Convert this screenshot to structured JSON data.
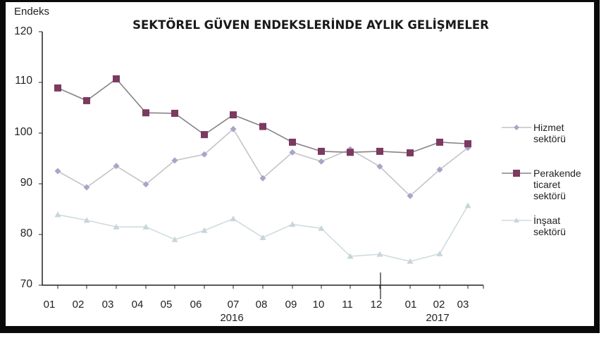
{
  "chart_data": {
    "type": "line",
    "title": "SEKTÖREL GÜVEN ENDEKSLERİNDE AYLIK GELİŞMELER",
    "ylabel": "Endeks",
    "xlabel": "",
    "ylim": [
      70,
      120
    ],
    "yticks": [
      "120",
      "110",
      "100",
      "90",
      "80",
      "70"
    ],
    "categories": [
      "01",
      "02",
      "03",
      "04",
      "05",
      "06",
      "07",
      "08",
      "09",
      "10",
      "11",
      "12",
      "01",
      "02",
      "03"
    ],
    "x_groups": [
      {
        "label": "2016",
        "months": [
          "01",
          "02",
          "03",
          "04",
          "05",
          "06",
          "07",
          "08",
          "09",
          "10",
          "11",
          "12"
        ]
      },
      {
        "label": "2017",
        "months": [
          "01",
          "02",
          "03"
        ]
      }
    ],
    "grid": false,
    "legend_position": "right",
    "series": [
      {
        "name": "Hizmet sektörü",
        "marker": "diamond",
        "color": "#a9a4c9",
        "line_color": "#c4c4c8",
        "values": [
          92.5,
          89.3,
          93.5,
          89.9,
          94.6,
          95.8,
          100.8,
          91.1,
          96.2,
          94.4,
          96.8,
          93.4,
          87.6,
          92.8,
          97.1
        ]
      },
      {
        "name": "Perakende ticaret sektörü",
        "marker": "square",
        "color": "#7b3a5f",
        "line_color": "#8a8288",
        "values": [
          108.9,
          106.4,
          110.7,
          104.0,
          103.9,
          99.7,
          103.6,
          101.3,
          98.2,
          96.4,
          96.2,
          96.4,
          96.1,
          98.2,
          97.9
        ]
      },
      {
        "name": "İnşaat sektörü",
        "marker": "triangle",
        "color": "#c6d6da",
        "line_color": "#cfdcdf",
        "values": [
          83.9,
          82.8,
          81.5,
          81.5,
          79.0,
          80.8,
          83.1,
          79.4,
          82.0,
          81.2,
          75.7,
          76.1,
          74.7,
          76.2,
          85.7
        ]
      }
    ]
  },
  "legend": {
    "items": [
      {
        "line1": "Hizmet",
        "line2": "sektörü",
        "line3": ""
      },
      {
        "line1": "Perakende",
        "line2": "ticaret",
        "line3": "sektörü"
      },
      {
        "line1": "İnşaat",
        "line2": "sektörü",
        "line3": ""
      }
    ]
  }
}
